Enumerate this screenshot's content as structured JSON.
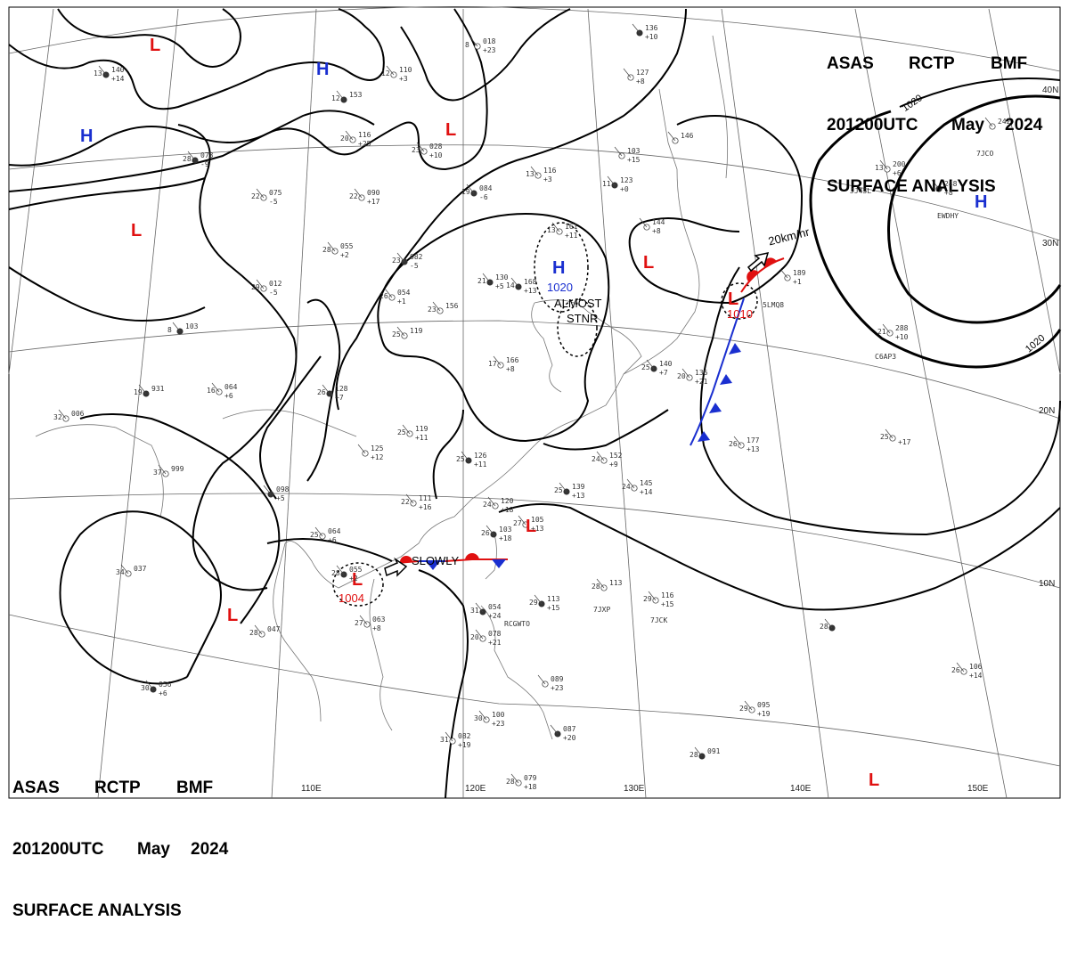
{
  "header": {
    "line1": [
      "ASAS",
      "RCTP",
      "BMF"
    ],
    "line2": [
      "201200UTC",
      "May",
      "2024"
    ],
    "line3": "SURFACE ANALYSIS"
  },
  "longitude_labels": [
    "110E",
    "120E",
    "130E",
    "140E",
    "150E"
  ],
  "latitude_labels": [
    "40N",
    "30N",
    "20N",
    "10N"
  ],
  "isobar_labels": [
    "1020",
    "1020"
  ],
  "pressure_systems": [
    {
      "type": "H",
      "pressure": "1020"
    },
    {
      "type": "L",
      "pressure": "1010"
    },
    {
      "type": "L",
      "pressure": "1004"
    },
    {
      "type": "H",
      "pressure": ""
    },
    {
      "type": "H",
      "pressure": ""
    },
    {
      "type": "H",
      "pressure": ""
    },
    {
      "type": "L",
      "pressure": ""
    },
    {
      "type": "L",
      "pressure": ""
    },
    {
      "type": "L",
      "pressure": ""
    },
    {
      "type": "L",
      "pressure": ""
    },
    {
      "type": "L",
      "pressure": ""
    },
    {
      "type": "L",
      "pressure": ""
    },
    {
      "type": "L",
      "pressure": ""
    },
    {
      "type": "L",
      "pressure": ""
    }
  ],
  "annotations": {
    "motion_ne": "20km/hr",
    "almost_stationary": [
      "ALMOST",
      "STNR"
    ],
    "slowly": "SLOWLY"
  },
  "station_reports": [
    {
      "t": "13",
      "p": "140",
      "d": "+14"
    },
    {
      "t": "12",
      "p": "110",
      "d": "+3"
    },
    {
      "t": "8",
      "p": "018",
      "d": "+23"
    },
    {
      "t": "12",
      "p": "153",
      "d": ""
    },
    {
      "t": "20",
      "p": "116",
      "d": "+25"
    },
    {
      "t": "23",
      "p": "028",
      "d": "+10"
    },
    {
      "t": "28",
      "p": "073",
      "d": "-9"
    },
    {
      "t": "22",
      "p": "075",
      "d": "-5"
    },
    {
      "t": "22",
      "p": "090",
      "d": "+17"
    },
    {
      "t": "19",
      "p": "084",
      "d": "-6"
    },
    {
      "t": "13",
      "p": "116",
      "d": "+3"
    },
    {
      "t": "28",
      "p": "055",
      "d": "+2"
    },
    {
      "t": "23",
      "p": "082",
      "d": "-5"
    },
    {
      "t": "29",
      "p": "012",
      "d": "-5"
    },
    {
      "t": "26",
      "p": "054",
      "d": "+1"
    },
    {
      "t": "21",
      "p": "130",
      "d": "+5"
    },
    {
      "t": "23",
      "p": "156",
      "d": ""
    },
    {
      "t": "13",
      "p": "161",
      "d": "+11"
    },
    {
      "t": "14",
      "p": "168",
      "d": "+13"
    },
    {
      "t": "",
      "p": "144",
      "d": "+8"
    },
    {
      "t": "",
      "p": "103",
      "d": "+15"
    },
    {
      "t": "11",
      "p": "123",
      "d": "+0"
    },
    {
      "t": "",
      "p": "146",
      "d": ""
    },
    {
      "t": "",
      "p": "127",
      "d": "+8"
    },
    {
      "t": "",
      "p": "136",
      "d": "+10"
    },
    {
      "t": "13",
      "p": "200",
      "d": "+6"
    },
    {
      "t": "",
      "p": "242",
      "d": ""
    },
    {
      "t": "",
      "p": "248",
      "d": "+8"
    },
    {
      "t": "",
      "p": "189",
      "d": "+1"
    },
    {
      "t": "21",
      "p": "288",
      "d": "+10"
    },
    {
      "t": "8",
      "p": "103",
      "d": ""
    },
    {
      "t": "25",
      "p": "119",
      "d": ""
    },
    {
      "t": "17",
      "p": "166",
      "d": "+8"
    },
    {
      "t": "19",
      "p": "931",
      "d": ""
    },
    {
      "t": "32",
      "p": "006",
      "d": ""
    },
    {
      "t": "16",
      "p": "064",
      "d": "+6"
    },
    {
      "t": "26",
      "p": "128",
      "d": "+7"
    },
    {
      "t": "20",
      "p": "136",
      "d": "+21"
    },
    {
      "t": "26",
      "p": "177",
      "d": "+13"
    },
    {
      "t": "25",
      "p": "140",
      "d": "+7"
    },
    {
      "t": "25",
      "p": "119",
      "d": "+11"
    },
    {
      "t": "",
      "p": "125",
      "d": "+12"
    },
    {
      "t": "25",
      "p": "126",
      "d": "+11"
    },
    {
      "t": "24",
      "p": "152",
      "d": "+9"
    },
    {
      "t": "37",
      "p": "999",
      "d": ""
    },
    {
      "t": "",
      "p": "098",
      "d": "+5"
    },
    {
      "t": "22",
      "p": "111",
      "d": "+16"
    },
    {
      "t": "24",
      "p": "120",
      "d": "+18"
    },
    {
      "t": "25",
      "p": "139",
      "d": "+13"
    },
    {
      "t": "24",
      "p": "145",
      "d": "+14"
    },
    {
      "t": "27",
      "p": "105",
      "d": "+13"
    },
    {
      "t": "26",
      "p": "103",
      "d": "+18"
    },
    {
      "t": "25",
      "p": "064",
      "d": "+6"
    },
    {
      "t": "34",
      "p": "037",
      "d": ""
    },
    {
      "t": "28",
      "p": "055",
      "d": "+2"
    },
    {
      "t": "27",
      "p": "063",
      "d": "+8"
    },
    {
      "t": "28",
      "p": "047",
      "d": ""
    },
    {
      "t": "29",
      "p": "113",
      "d": "+15"
    },
    {
      "t": "28",
      "p": "113",
      "d": ""
    },
    {
      "t": "29",
      "p": "116",
      "d": "+15"
    },
    {
      "t": "31",
      "p": "054",
      "d": "+24"
    },
    {
      "t": "20",
      "p": "078",
      "d": "+21"
    },
    {
      "t": "",
      "p": "089",
      "d": "+23"
    },
    {
      "t": "30",
      "p": "056",
      "d": "+6"
    },
    {
      "t": "30",
      "p": "100",
      "d": "+23"
    },
    {
      "t": "31",
      "p": "082",
      "d": "+19"
    },
    {
      "t": "",
      "p": "087",
      "d": "+20"
    },
    {
      "t": "28",
      "p": "079",
      "d": "+18"
    },
    {
      "t": "29",
      "p": "095",
      "d": "+19"
    },
    {
      "t": "28",
      "p": "091",
      "d": ""
    },
    {
      "t": "26",
      "p": "106",
      "d": "+14"
    },
    {
      "t": "25",
      "p": "",
      "d": "+17"
    },
    {
      "t": "28",
      "p": "",
      "d": ""
    }
  ],
  "ship_callsigns": [
    "7JCO",
    "EWDHY",
    "JJ45L",
    "5LMQ8",
    "C6AP3",
    "7JXP",
    "7JCK",
    "RCGWTO"
  ]
}
